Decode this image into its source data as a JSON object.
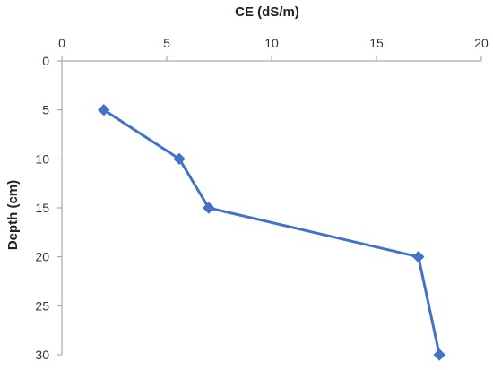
{
  "chart_data": {
    "type": "line",
    "xlabel": "CE (dS/m)",
    "ylabel": "Depth (cm)",
    "xlim": [
      0,
      20
    ],
    "ylim": [
      0,
      30
    ],
    "y_inverted": true,
    "x_axis_position": "top",
    "x_ticks": [
      0,
      5,
      10,
      15,
      20
    ],
    "y_ticks": [
      0,
      5,
      10,
      15,
      20,
      25,
      30
    ],
    "grid": false,
    "legend": "none",
    "series": [
      {
        "color": "#4472C4",
        "marker": "diamond",
        "points": [
          {
            "x": 2,
            "y": 5
          },
          {
            "x": 5.6,
            "y": 10
          },
          {
            "x": 7,
            "y": 15
          },
          {
            "x": 17,
            "y": 20
          },
          {
            "x": 18,
            "y": 30
          }
        ]
      }
    ]
  }
}
